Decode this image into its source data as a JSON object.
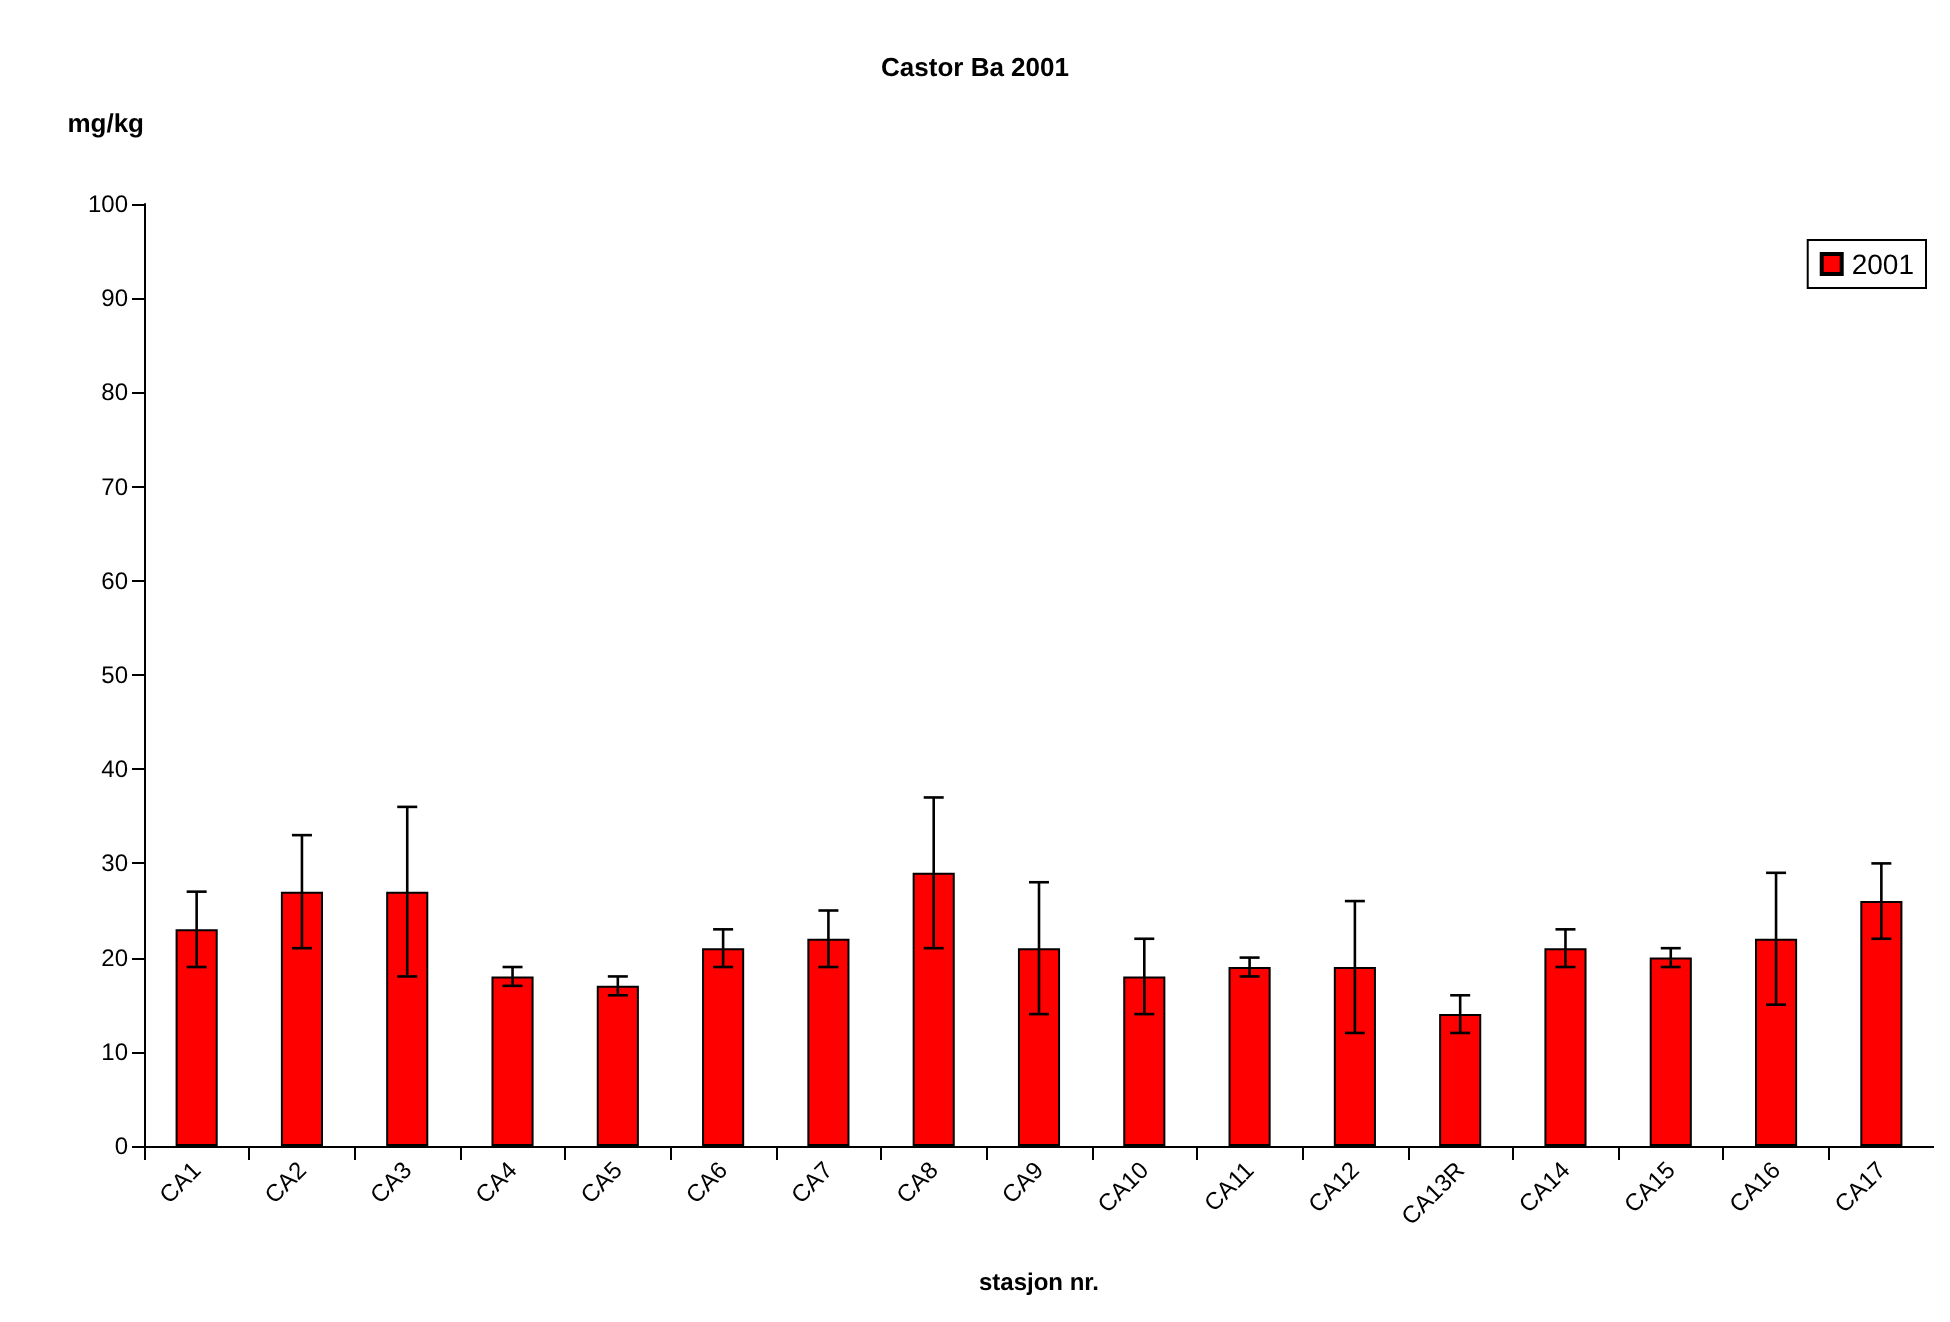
{
  "chart_data": {
    "type": "bar",
    "title": "Castor Ba 2001",
    "xlabel": "stasjon nr.",
    "ylabel": "mg/kg",
    "categories": [
      "CA1",
      "CA2",
      "CA3",
      "CA4",
      "CA5",
      "CA6",
      "CA7",
      "CA8",
      "CA9",
      "CA10",
      "CA11",
      "CA12",
      "CA13R",
      "CA14",
      "CA15",
      "CA16",
      "CA17"
    ],
    "series": [
      {
        "name": "2001",
        "color": "#ff0000",
        "values": [
          23,
          27,
          27,
          18,
          17,
          21,
          22,
          29,
          21,
          18,
          19,
          19,
          14,
          21,
          20,
          22,
          26
        ],
        "errors": [
          4,
          6,
          9,
          1,
          1,
          2,
          3,
          8,
          7,
          4,
          1,
          7,
          2,
          2,
          1,
          7,
          4
        ]
      }
    ],
    "ylim": [
      0,
      100
    ],
    "yticks": [
      0,
      10,
      20,
      30,
      40,
      50,
      60,
      70,
      80,
      90,
      100
    ],
    "grid": false,
    "legend": "top right"
  }
}
